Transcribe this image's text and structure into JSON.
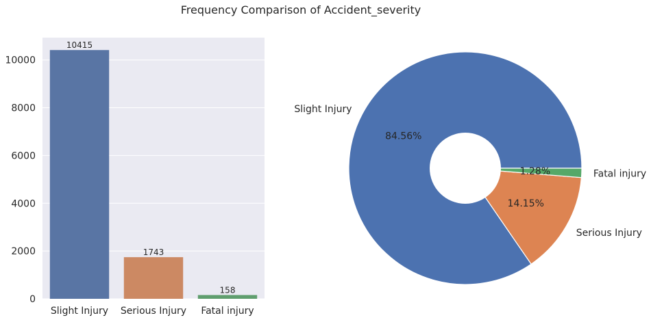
{
  "figure": {
    "title": "Frequency Comparison of Accident_severity"
  },
  "colors": {
    "axes_background": "#eaeaf2",
    "grid": "#ffffff",
    "text": "#262626",
    "bar_colors": [
      "#5975a4",
      "#cc8963",
      "#5f9e6e"
    ],
    "pie_colors": [
      "#4c72b0",
      "#dd8452",
      "#55a868"
    ]
  },
  "chart_data": [
    {
      "type": "bar",
      "categories": [
        "Slight Injury",
        "Serious Injury",
        "Fatal injury"
      ],
      "values": [
        10415,
        1743,
        158
      ],
      "data_labels": [
        "10415",
        "1743",
        "158"
      ],
      "title": "",
      "xlabel": "",
      "ylabel": "",
      "ylim": [
        0,
        10936
      ],
      "yticks": [
        0,
        2000,
        4000,
        6000,
        8000,
        10000
      ],
      "grid": true
    },
    {
      "type": "pie",
      "donut": true,
      "categories": [
        "Slight Injury",
        "Serious Injury",
        "Fatal injury"
      ],
      "values": [
        10415,
        1743,
        158
      ],
      "percent_labels": [
        "84.56%",
        "14.15%",
        "1.28%"
      ]
    }
  ]
}
